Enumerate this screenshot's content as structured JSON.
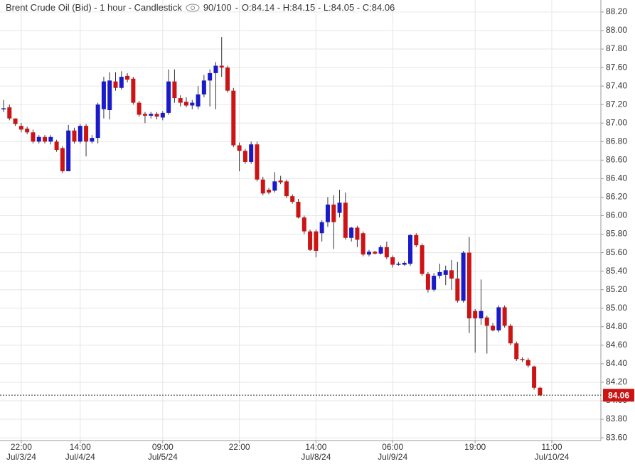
{
  "chart_data": {
    "type": "candlestick",
    "title": "Brent Crude Oil (Bid) - 1 hour - Candlestick",
    "zoom": "90/100",
    "ohlc_summary": "O:84.14 - H:84.15 - L:84.05 - C:84.06",
    "up_color": "#1a1ac8",
    "down_color": "#cc1414",
    "categories": [
      null,
      null,
      null,
      "22:00",
      null,
      null,
      null,
      null,
      null,
      null,
      null,
      null,
      null,
      "14:00",
      null,
      null,
      null,
      null,
      null,
      null,
      null,
      null,
      null,
      null,
      null,
      null,
      null,
      "09:00",
      null,
      null,
      null,
      null,
      null,
      null,
      null,
      null,
      null,
      null,
      null,
      null,
      "22:00",
      null,
      null,
      null,
      null,
      null,
      null,
      null,
      null,
      null,
      null,
      null,
      null,
      "14:00",
      null,
      null,
      null,
      null,
      null,
      null,
      null,
      null,
      null,
      null,
      null,
      null,
      "06:00",
      null,
      null,
      null,
      null,
      null,
      null,
      null,
      null,
      null,
      null,
      null,
      null,
      null,
      "19:00",
      null,
      null,
      null,
      null,
      null,
      null,
      null,
      null,
      null,
      null,
      null,
      null,
      "11:00"
    ],
    "category_dates": [
      null,
      null,
      null,
      "Jul/3/24",
      null,
      null,
      null,
      null,
      null,
      null,
      null,
      null,
      null,
      "Jul/4/24",
      null,
      null,
      null,
      null,
      null,
      null,
      null,
      null,
      null,
      null,
      null,
      null,
      null,
      "Jul/5/24",
      null,
      null,
      null,
      null,
      null,
      null,
      null,
      null,
      null,
      null,
      null,
      null,
      null,
      null,
      null,
      null,
      null,
      null,
      null,
      null,
      null,
      null,
      null,
      null,
      null,
      "Jul/8/24",
      null,
      null,
      null,
      null,
      null,
      null,
      null,
      null,
      null,
      null,
      null,
      null,
      "Jul/9/24",
      null,
      null,
      null,
      null,
      null,
      null,
      null,
      null,
      null,
      null,
      null,
      null,
      null,
      null,
      null,
      null,
      null,
      null,
      null,
      null,
      null,
      null,
      null,
      null,
      null,
      null,
      "Jul/10/24"
    ],
    "open": [
      87.15,
      87.17,
      87.05,
      86.97,
      86.94,
      86.9,
      86.8,
      86.85,
      86.8,
      86.8,
      86.73,
      86.48,
      86.92,
      86.8,
      86.97,
      86.8,
      86.84,
      87.15,
      87.14,
      87.45,
      87.38,
      87.51,
      87.48,
      87.22,
      87.1,
      87.08,
      87.1,
      87.06,
      87.11,
      87.45,
      87.27,
      87.23,
      87.19,
      87.18,
      87.31,
      87.46,
      87.54,
      87.62,
      87.6,
      87.35,
      86.76,
      86.7,
      86.58,
      86.77,
      86.39,
      86.28,
      86.27,
      86.38,
      86.37,
      86.21,
      86.15,
      85.98,
      85.83,
      85.83,
      85.81,
      85.93,
      86.12,
      86.03,
      86.14,
      85.76,
      85.87,
      85.81,
      85.58,
      85.61,
      85.59,
      85.66,
      85.55,
      85.47,
      85.47,
      85.48,
      85.79,
      85.68,
      85.37,
      85.2,
      85.35,
      85.36,
      85.41,
      85.32,
      85.08,
      85.6,
      84.97,
      84.89,
      84.9,
      84.81,
      84.76,
      85.01,
      84.81,
      84.62,
      84.45,
      84.44,
      84.37,
      84.14,
      null,
      null
    ],
    "high": [
      87.25,
      87.2,
      87.05,
      87.0,
      86.96,
      86.93,
      86.87,
      86.87,
      86.87,
      86.82,
      86.75,
      86.98,
      86.95,
      86.99,
      86.99,
      86.87,
      87.22,
      87.5,
      87.55,
      87.55,
      87.56,
      87.54,
      87.5,
      87.24,
      87.12,
      87.12,
      87.12,
      87.13,
      87.58,
      87.58,
      87.3,
      87.28,
      87.25,
      87.4,
      87.52,
      87.58,
      87.66,
      87.93,
      87.62,
      87.38,
      86.79,
      86.72,
      86.8,
      86.8,
      86.42,
      86.3,
      86.47,
      86.43,
      86.39,
      86.23,
      86.18,
      86.0,
      85.85,
      85.85,
      85.95,
      86.2,
      86.22,
      86.28,
      86.25,
      85.88,
      85.89,
      85.83,
      85.63,
      85.62,
      85.68,
      85.72,
      85.57,
      85.5,
      85.51,
      85.8,
      85.81,
      85.7,
      85.39,
      85.38,
      85.48,
      85.46,
      85.52,
      85.5,
      85.62,
      85.77,
      84.99,
      85.31,
      84.92,
      84.84,
      85.03,
      85.03,
      84.83,
      84.64,
      84.47,
      84.46,
      84.38,
      84.15,
      null,
      null
    ],
    "low": [
      87.12,
      87.03,
      86.97,
      86.9,
      86.88,
      86.78,
      86.78,
      86.78,
      86.77,
      86.69,
      86.46,
      86.48,
      86.78,
      86.78,
      86.64,
      86.78,
      86.78,
      87.05,
      87.04,
      87.35,
      87.36,
      87.44,
      87.2,
      87.07,
      87.0,
      87.05,
      87.04,
      87.03,
      87.09,
      87.22,
      87.18,
      87.17,
      87.15,
      87.15,
      87.28,
      87.18,
      87.15,
      87.5,
      87.33,
      86.74,
      86.48,
      86.56,
      86.56,
      86.37,
      86.22,
      86.23,
      86.25,
      86.34,
      86.19,
      86.13,
      85.97,
      85.8,
      85.62,
      85.55,
      85.72,
      85.88,
      85.64,
      85.98,
      85.74,
      85.72,
      85.66,
      85.56,
      85.56,
      85.58,
      85.58,
      85.53,
      85.44,
      85.46,
      85.46,
      85.46,
      85.66,
      85.35,
      85.17,
      85.18,
      85.32,
      85.25,
      85.2,
      85.06,
      85.06,
      84.73,
      84.52,
      84.82,
      84.51,
      84.75,
      84.74,
      84.79,
      84.6,
      84.43,
      84.42,
      84.36,
      84.12,
      84.05,
      null,
      null
    ],
    "close": [
      87.16,
      87.05,
      86.99,
      86.93,
      86.9,
      86.8,
      86.85,
      86.8,
      86.85,
      86.71,
      86.48,
      86.92,
      86.8,
      86.97,
      86.8,
      86.84,
      87.2,
      87.45,
      87.46,
      87.38,
      87.5,
      87.47,
      87.22,
      87.09,
      87.08,
      87.1,
      87.07,
      87.11,
      87.45,
      87.27,
      87.22,
      87.19,
      87.22,
      87.31,
      87.46,
      87.54,
      87.62,
      87.6,
      87.35,
      86.76,
      86.7,
      86.58,
      86.77,
      86.39,
      86.24,
      86.25,
      86.37,
      86.36,
      86.21,
      86.15,
      85.98,
      85.83,
      85.63,
      85.62,
      85.93,
      86.12,
      85.93,
      86.14,
      85.76,
      85.87,
      85.74,
      85.58,
      85.61,
      85.59,
      85.66,
      85.55,
      85.47,
      85.48,
      85.49,
      85.79,
      85.68,
      85.37,
      85.2,
      85.35,
      85.39,
      85.41,
      85.32,
      85.08,
      85.6,
      84.89,
      84.89,
      84.97,
      84.81,
      84.76,
      85.01,
      84.81,
      84.62,
      84.45,
      84.44,
      84.38,
      84.14,
      84.06,
      null,
      null
    ],
    "last_price": 84.06,
    "ylim": [
      83.57,
      88.33
    ],
    "yticks": [
      {
        "value": 83.6,
        "label": "83.60"
      },
      {
        "value": 83.8,
        "label": "83.80"
      },
      {
        "value": 84.0,
        "label": "84.00"
      },
      {
        "value": 84.2,
        "label": "84.20"
      },
      {
        "value": 84.4,
        "label": "84.40"
      },
      {
        "value": 84.6,
        "label": "84.60"
      },
      {
        "value": 84.8,
        "label": "84.80"
      },
      {
        "value": 85.0,
        "label": "85.00"
      },
      {
        "value": 85.2,
        "label": "85.20"
      },
      {
        "value": 85.4,
        "label": "85.40"
      },
      {
        "value": 85.6,
        "label": "85.60"
      },
      {
        "value": 85.8,
        "label": "85.80"
      },
      {
        "value": 86.0,
        "label": "86.00"
      },
      {
        "value": 86.2,
        "label": "86.20"
      },
      {
        "value": 86.4,
        "label": "86.40"
      },
      {
        "value": 86.6,
        "label": "86.60"
      },
      {
        "value": 86.8,
        "label": "86.80"
      },
      {
        "value": 87.0,
        "label": "87.00"
      },
      {
        "value": 87.2,
        "label": "87.20"
      },
      {
        "value": 87.4,
        "label": "87.40"
      },
      {
        "value": 87.6,
        "label": "87.60"
      },
      {
        "value": 87.8,
        "label": "87.80"
      },
      {
        "value": 88.0,
        "label": "88.00"
      },
      {
        "value": 88.2,
        "label": "88.20"
      }
    ],
    "grid": true
  }
}
